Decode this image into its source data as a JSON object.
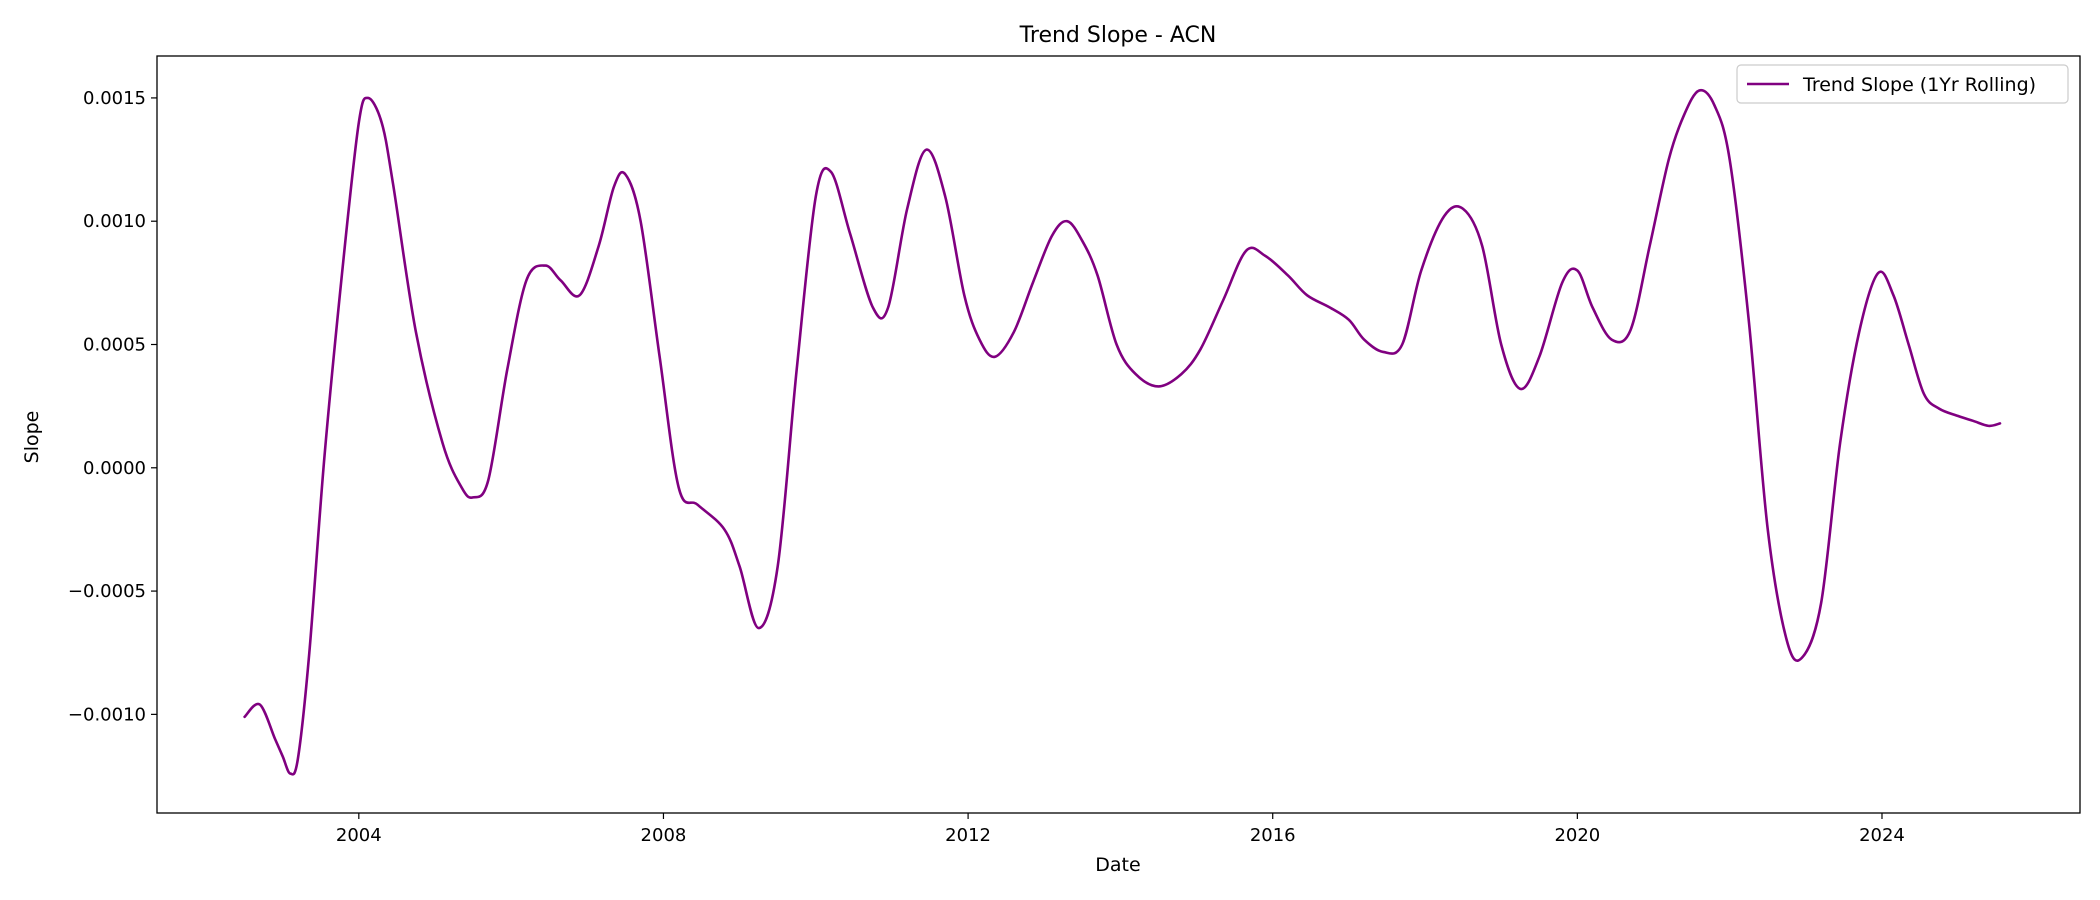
{
  "chart_data": {
    "type": "line",
    "title": "Trend Slope - ACN",
    "xlabel": "Date",
    "ylabel": "Slope",
    "xlim": [
      2001.35,
      2026.6
    ],
    "ylim": [
      -0.0014,
      0.00167
    ],
    "x_ticks": [
      2004,
      2008,
      2012,
      2016,
      2020,
      2024
    ],
    "x_tick_labels": [
      "2004",
      "2008",
      "2012",
      "2016",
      "2020",
      "2024"
    ],
    "y_ticks": [
      -0.001,
      -0.0005,
      0.0,
      0.0005,
      0.001,
      0.0015
    ],
    "y_tick_labels": [
      "−0.0010",
      "−0.0005",
      "0.0000",
      "0.0005",
      "0.0010",
      "0.0015"
    ],
    "grid": false,
    "legend_position": "top-right",
    "series": [
      {
        "name": "Trend Slope (1Yr Rolling)",
        "color": "#800080",
        "x": [
          2002.5,
          2002.7,
          2002.9,
          2003.0,
          2003.1,
          2003.2,
          2003.35,
          2003.55,
          2003.8,
          2004.0,
          2004.12,
          2004.3,
          2004.45,
          2004.75,
          2005.1,
          2005.35,
          2005.5,
          2005.7,
          2005.95,
          2006.2,
          2006.45,
          2006.65,
          2006.9,
          2007.15,
          2007.35,
          2007.5,
          2007.7,
          2007.95,
          2008.2,
          2008.45,
          2008.8,
          2009.0,
          2009.25,
          2009.5,
          2009.75,
          2010.0,
          2010.2,
          2010.45,
          2010.75,
          2010.95,
          2011.2,
          2011.45,
          2011.7,
          2011.95,
          2012.15,
          2012.35,
          2012.6,
          2012.85,
          2013.1,
          2013.3,
          2013.5,
          2013.7,
          2013.95,
          2014.2,
          2014.5,
          2014.8,
          2015.05,
          2015.35,
          2015.65,
          2015.9,
          2016.2,
          2016.45,
          2016.75,
          2017.0,
          2017.2,
          2017.45,
          2017.7,
          2017.95,
          2018.25,
          2018.5,
          2018.75,
          2019.0,
          2019.25,
          2019.5,
          2019.8,
          2020.0,
          2020.2,
          2020.45,
          2020.7,
          2020.95,
          2021.2,
          2021.4,
          2021.6,
          2021.8,
          2022.0,
          2022.25,
          2022.5,
          2022.75,
          2022.95,
          2023.2,
          2023.45,
          2023.7,
          2023.95,
          2024.15,
          2024.35,
          2024.55,
          2024.75,
          2025.0,
          2025.2,
          2025.4,
          2025.55
        ],
        "y": [
          -0.00101,
          -0.00096,
          -0.0011,
          -0.00117,
          -0.00124,
          -0.00118,
          -0.00075,
          5e-05,
          0.00085,
          0.0014,
          0.0015,
          0.0014,
          0.00115,
          0.00055,
          0.0001,
          -8e-05,
          -0.00012,
          -5e-05,
          0.0004,
          0.00076,
          0.00082,
          0.00076,
          0.0007,
          0.0009,
          0.00114,
          0.00119,
          0.001,
          0.00045,
          -8e-05,
          -0.00015,
          -0.00025,
          -0.0004,
          -0.00065,
          -0.0004,
          0.0004,
          0.0011,
          0.0012,
          0.00095,
          0.00065,
          0.00065,
          0.00105,
          0.00129,
          0.0011,
          0.0007,
          0.00052,
          0.00045,
          0.00055,
          0.00075,
          0.00094,
          0.001,
          0.00092,
          0.00078,
          0.0005,
          0.00038,
          0.00033,
          0.00038,
          0.00048,
          0.00068,
          0.00088,
          0.00086,
          0.00078,
          0.0007,
          0.00065,
          0.0006,
          0.00052,
          0.00047,
          0.0005,
          0.0008,
          0.00102,
          0.00105,
          0.0009,
          0.0005,
          0.00032,
          0.00045,
          0.00075,
          0.0008,
          0.00065,
          0.00052,
          0.00056,
          0.0009,
          0.00125,
          0.00143,
          0.00153,
          0.00147,
          0.00125,
          0.0006,
          -0.00025,
          -0.0007,
          -0.00077,
          -0.00055,
          0.0001,
          0.00055,
          0.00079,
          0.0007,
          0.0005,
          0.0003,
          0.00024,
          0.00021,
          0.00019,
          0.00017,
          0.00018
        ]
      }
    ]
  }
}
